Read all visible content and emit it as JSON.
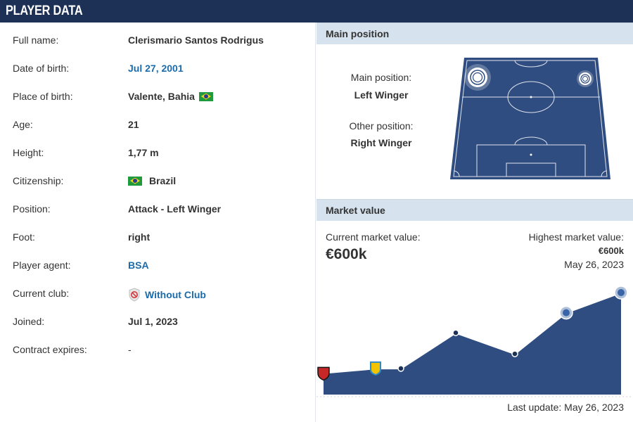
{
  "header": {
    "title": "PLAYER DATA"
  },
  "player": {
    "rows": [
      {
        "label": "Full name:",
        "value": "Clerismario Santos Rodrigus"
      },
      {
        "label": "Date of birth:",
        "value": "Jul 27, 2001"
      },
      {
        "label": "Place of birth:",
        "value": "Valente, Bahia"
      },
      {
        "label": "Age:",
        "value": "21"
      },
      {
        "label": "Height:",
        "value": "1,77 m"
      },
      {
        "label": "Citizenship:",
        "value": "Brazil"
      },
      {
        "label": "Position:",
        "value": "Attack - Left Winger"
      },
      {
        "label": "Foot:",
        "value": "right"
      },
      {
        "label": "Player agent:",
        "value": "BSA"
      },
      {
        "label": "Current club:",
        "value": "Without Club"
      },
      {
        "label": "Joined:",
        "value": "Jul 1, 2023"
      },
      {
        "label": "Contract expires:",
        "value": "-"
      }
    ]
  },
  "main_position": {
    "heading": "Main position",
    "main_label": "Main position:",
    "main_value": "Left Winger",
    "other_label": "Other position:",
    "other_value": "Right Winger"
  },
  "market_value": {
    "heading": "Market value",
    "current_label": "Current market value:",
    "current_value": "€600k",
    "highest_label": "Highest market value:",
    "highest_value": "€600k",
    "highest_date": "May 26, 2023",
    "last_update": "Last update: May 26, 2023",
    "chart_levels": [
      0.12,
      0.17,
      0.17,
      0.56,
      0.33,
      0.78,
      1.0
    ]
  },
  "colors": {
    "header_bg": "#1d3156",
    "link": "#1b6bab",
    "pitch": "#2f4d80",
    "panel_head": "#d6e3ef",
    "chart_fill": "#2f4d80"
  },
  "icons": {
    "flag": "brazil-flag-icon",
    "no_club": "no-club-icon"
  }
}
